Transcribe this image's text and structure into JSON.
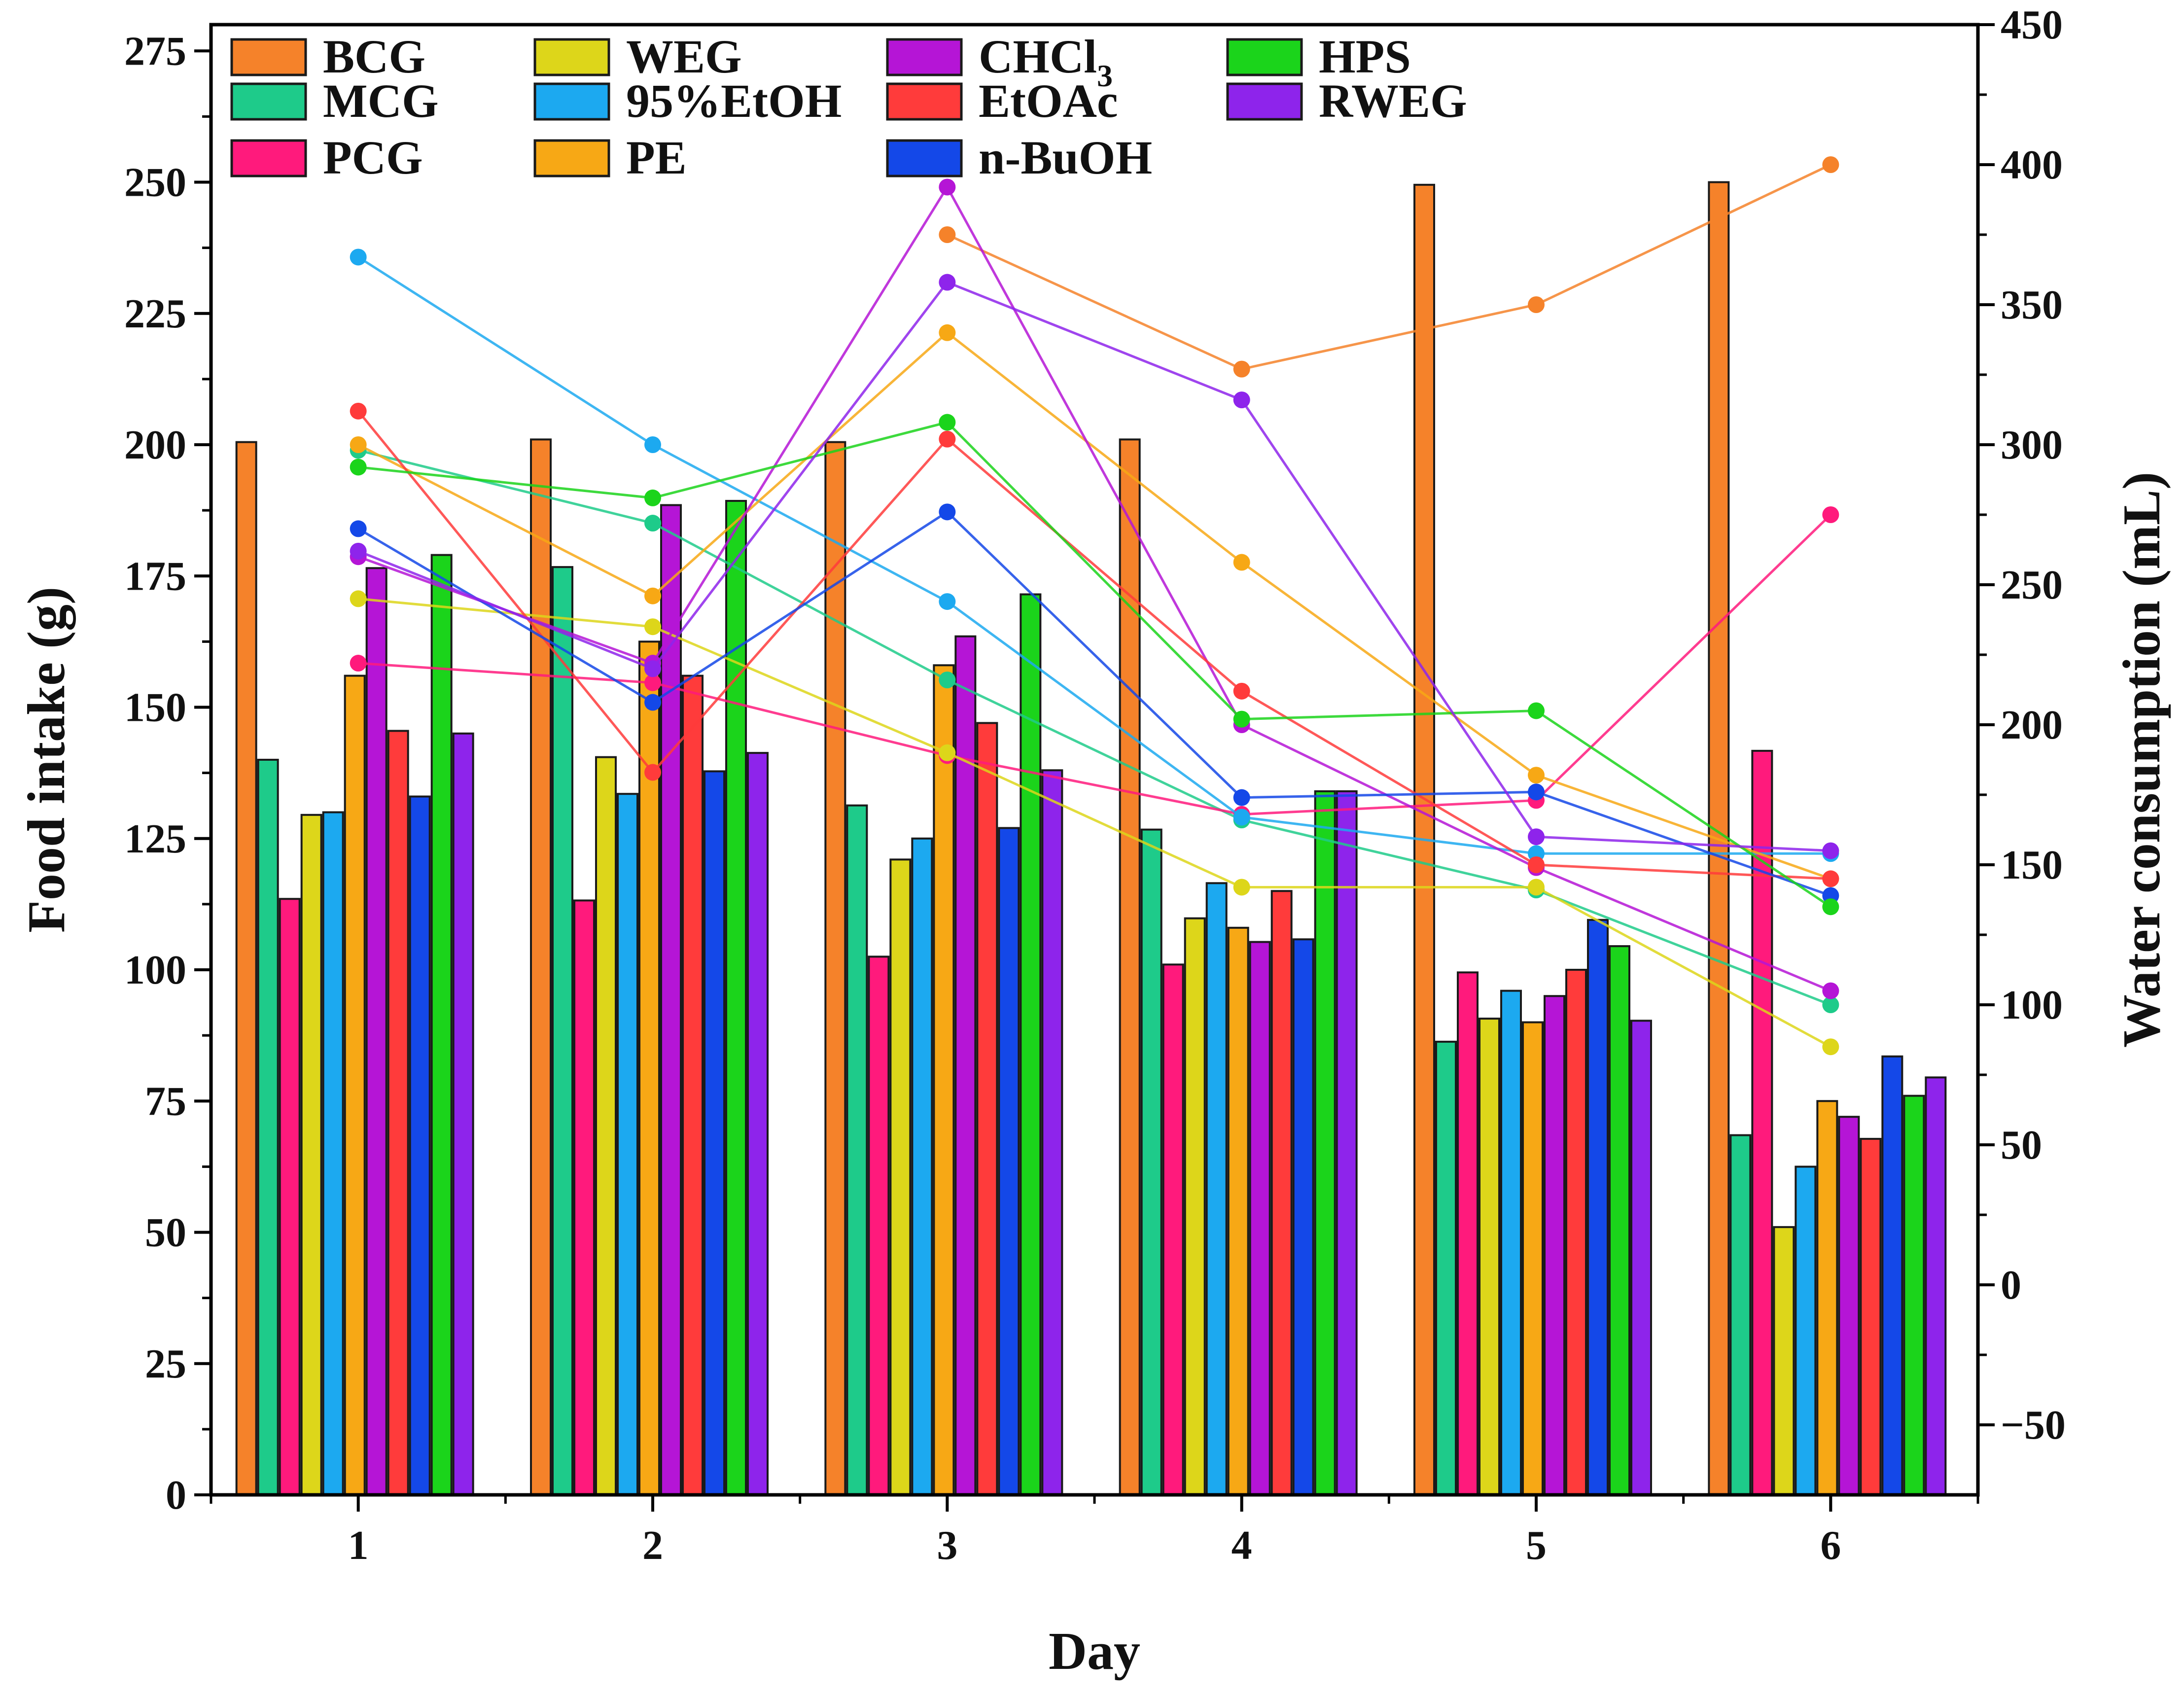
{
  "chart_data": {
    "type": "bar",
    "title": "",
    "xlabel": "Day",
    "ylabel": "Food intake (g)",
    "y2label": "Water consumption (mL)",
    "categories": [
      "1",
      "2",
      "3",
      "4",
      "5",
      "6"
    ],
    "ylim": [
      0,
      280
    ],
    "y_ticks": [
      0,
      25,
      50,
      75,
      100,
      125,
      150,
      175,
      200,
      225,
      250,
      275
    ],
    "y2lim": [
      -75,
      450
    ],
    "y2_ticks": [
      -50,
      0,
      50,
      100,
      150,
      200,
      250,
      300,
      350,
      400,
      450
    ],
    "y2_tick_labels": [
      "−50",
      "0",
      "50",
      "100",
      "150",
      "200",
      "250",
      "300",
      "350",
      "400",
      "450"
    ],
    "legend_position": "top",
    "legend_columns": [
      [
        "BCG",
        "MCG",
        "PCG"
      ],
      [
        "WEG",
        "95%EtOH",
        "PE"
      ],
      [
        "CHCl3",
        "EtOAc",
        "n-BuOH"
      ],
      [
        "HPS",
        "RWEG"
      ]
    ],
    "series": [
      {
        "name": "BCG",
        "label_main": "BCG",
        "color": "#F5822A",
        "food_intake": [
          200.5,
          201,
          200.5,
          201,
          249.5,
          250
        ],
        "water_consumption": [
          null,
          null,
          375,
          327,
          350,
          400
        ]
      },
      {
        "name": "MCG",
        "label_main": "MCG",
        "color": "#1ECB8A",
        "food_intake": [
          140,
          176.7,
          131.3,
          126.7,
          86.3,
          68.5
        ],
        "water_consumption": [
          298,
          272,
          216,
          166,
          141,
          100
        ]
      },
      {
        "name": "PCG",
        "label_main": "PCG",
        "color": "#FF1A7C",
        "food_intake": [
          113.5,
          113.2,
          102.5,
          101,
          99.5,
          141.7
        ],
        "water_consumption": [
          222,
          215,
          189,
          168,
          173,
          275
        ]
      },
      {
        "name": "WEG",
        "label_main": "WEG",
        "color": "#DDD61A",
        "food_intake": [
          129.5,
          140.5,
          121,
          109.8,
          90.7,
          51
        ],
        "water_consumption": [
          245,
          235,
          190,
          142,
          142,
          85
        ]
      },
      {
        "name": "95%EtOH",
        "label_main": "95%EtOH",
        "color": "#1CA9F0",
        "food_intake": [
          130,
          133.5,
          125,
          116.5,
          96,
          62.5
        ],
        "water_consumption": [
          367,
          300,
          244,
          167,
          154,
          154
        ]
      },
      {
        "name": "PE",
        "label_main": "PE",
        "color": "#F7A815",
        "food_intake": [
          156,
          162.5,
          158,
          108,
          90,
          75
        ],
        "water_consumption": [
          300,
          246,
          340,
          258,
          182,
          145
        ]
      },
      {
        "name": "CHCl3",
        "label_main": "CHCl",
        "label_sub": "3",
        "color": "#B515D6",
        "food_intake": [
          176.5,
          188.5,
          163.5,
          105.3,
          95,
          72
        ],
        "water_consumption": [
          260,
          222,
          392,
          200,
          149,
          105
        ]
      },
      {
        "name": "EtOAc",
        "label_main": "EtOAc",
        "color": "#FF3B3B",
        "food_intake": [
          145.5,
          156,
          147,
          115,
          100,
          67.8
        ],
        "water_consumption": [
          312,
          183,
          302,
          212,
          150,
          145
        ]
      },
      {
        "name": "n-BuOH",
        "label_main": "n-BuOH",
        "color": "#1448E8",
        "food_intake": [
          133,
          137.8,
          127,
          105.8,
          109.5,
          83.5
        ],
        "water_consumption": [
          270,
          208,
          276,
          174,
          176,
          139
        ]
      },
      {
        "name": "HPS",
        "label_main": "HPS",
        "color": "#1BD41B",
        "food_intake": [
          179,
          189.3,
          171.5,
          134,
          104.5,
          76
        ],
        "water_consumption": [
          292,
          281,
          308,
          202,
          205,
          135
        ]
      },
      {
        "name": "RWEG",
        "label_main": "RWEG",
        "color": "#8E24EB",
        "food_intake": [
          145,
          141.3,
          138,
          134,
          90.3,
          79.5
        ],
        "water_consumption": [
          262,
          220,
          358,
          316,
          160,
          155
        ]
      }
    ]
  }
}
